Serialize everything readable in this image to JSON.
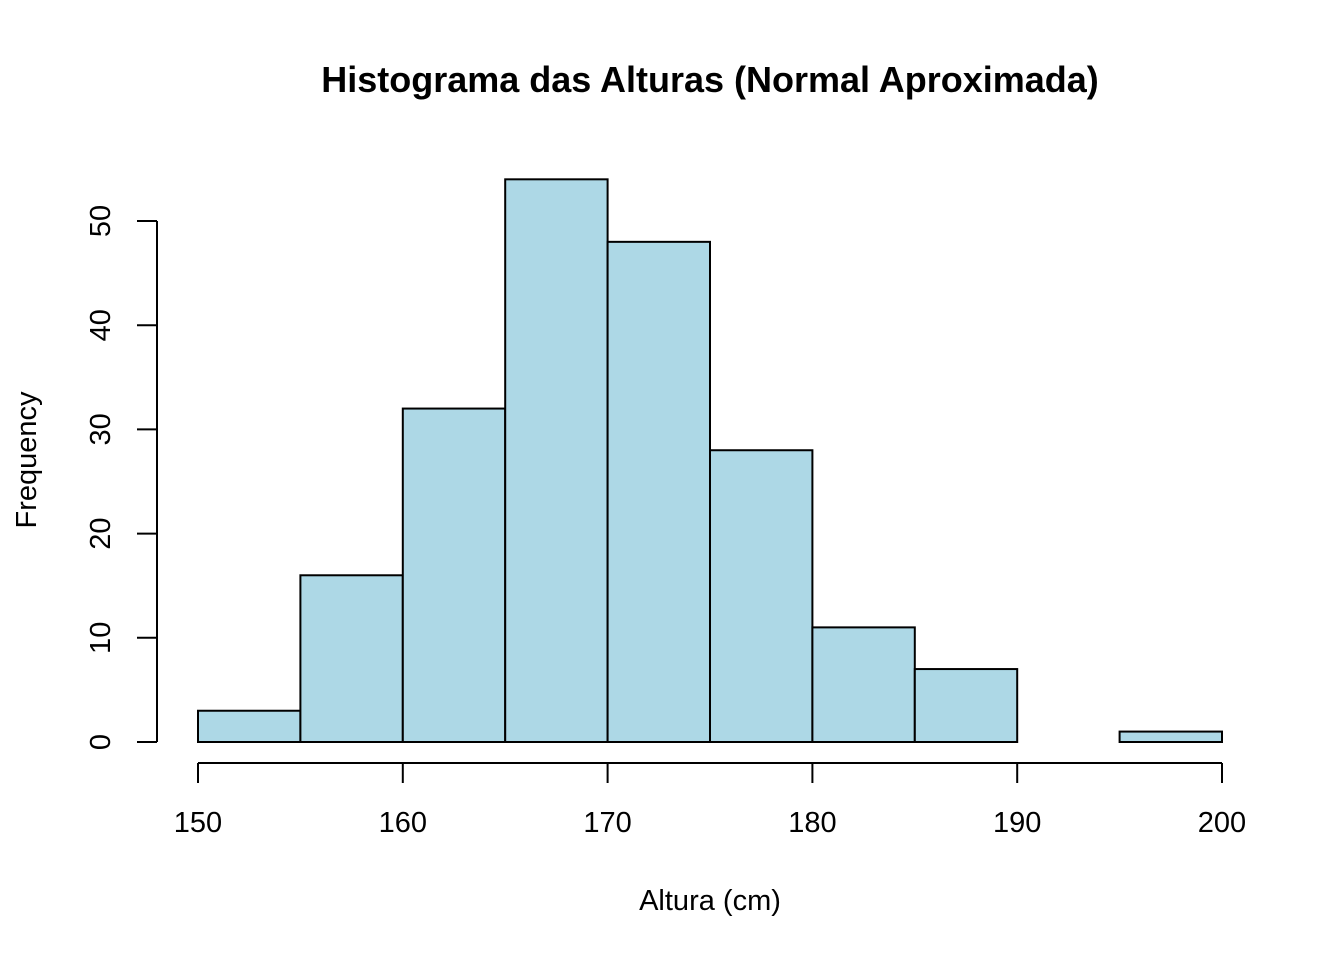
{
  "chart_data": {
    "type": "bar",
    "title": "Histograma das Alturas (Normal Aproximada)",
    "xlabel": "Altura (cm)",
    "ylabel": "Frequency",
    "bins": [
      {
        "from": 150,
        "to": 155,
        "count": 3
      },
      {
        "from": 155,
        "to": 160,
        "count": 16
      },
      {
        "from": 160,
        "to": 165,
        "count": 32
      },
      {
        "from": 165,
        "to": 170,
        "count": 54
      },
      {
        "from": 170,
        "to": 175,
        "count": 48
      },
      {
        "from": 175,
        "to": 180,
        "count": 28
      },
      {
        "from": 180,
        "to": 185,
        "count": 11
      },
      {
        "from": 185,
        "to": 190,
        "count": 7
      },
      {
        "from": 190,
        "to": 195,
        "count": 0
      },
      {
        "from": 195,
        "to": 200,
        "count": 1
      }
    ],
    "x_ticks": [
      150,
      160,
      170,
      180,
      190,
      200
    ],
    "y_ticks": [
      0,
      10,
      20,
      30,
      40,
      50
    ],
    "xlim": [
      150,
      200
    ],
    "ylim": [
      0,
      54
    ],
    "bar_color": "#add8e6",
    "border_color": "#000000",
    "grid": false,
    "legend": "none"
  }
}
